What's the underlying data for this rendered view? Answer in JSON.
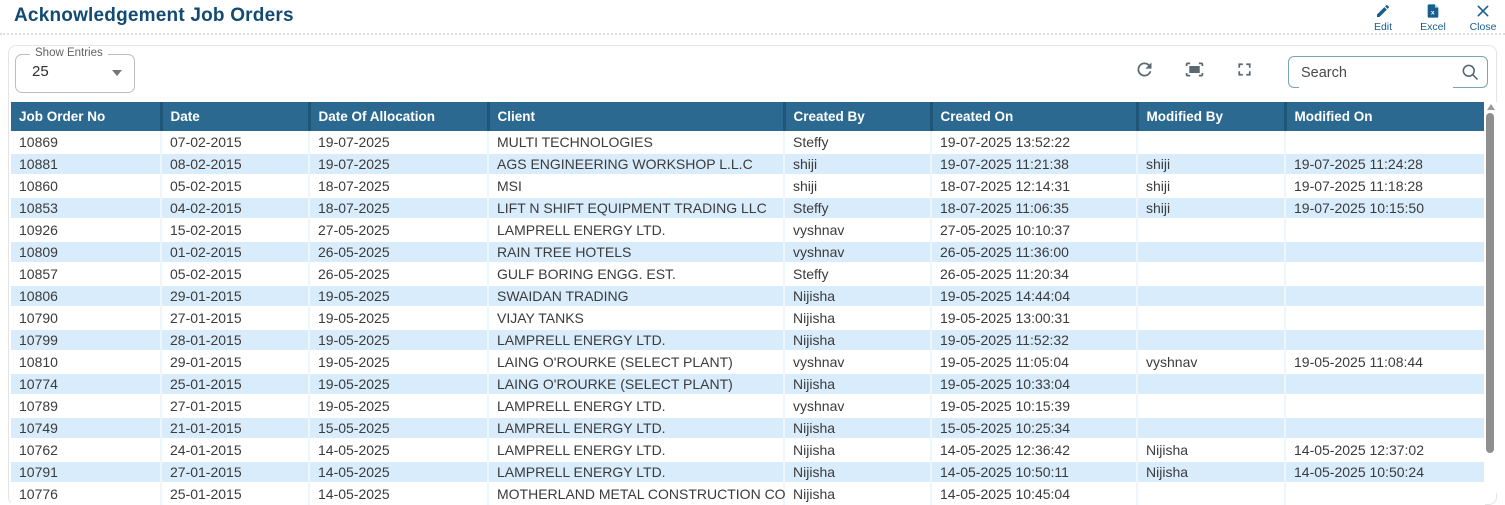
{
  "page": {
    "title": "Acknowledgement Job Orders"
  },
  "actions": {
    "edit_label": "Edit",
    "excel_label": "Excel",
    "close_label": "Close"
  },
  "controls": {
    "show_entries_label": "Show Entries",
    "show_entries_value": "25",
    "search_placeholder": "Search",
    "toolbar_icons": [
      "refresh-icon",
      "fit-screen-icon",
      "fullscreen-icon"
    ]
  },
  "colors": {
    "title_color": "#134a73",
    "action_color": "#175e8e",
    "header_bg": "#2b6991",
    "row_alt_bg": "#d8ecfc"
  },
  "table": {
    "columns": [
      "Job Order No",
      "Date",
      "Date Of Allocation",
      "Client",
      "Created By",
      "Created On",
      "Modified By",
      "Modified On"
    ],
    "rows": [
      [
        "10869",
        "07-02-2015",
        "19-07-2025",
        "MULTI TECHNOLOGIES",
        "Steffy",
        "19-07-2025 13:52:22",
        "",
        ""
      ],
      [
        "10881",
        "08-02-2015",
        "19-07-2025",
        "AGS ENGINEERING WORKSHOP L.L.C",
        "shiji",
        "19-07-2025 11:21:38",
        "shiji",
        "19-07-2025 11:24:28"
      ],
      [
        "10860",
        "05-02-2015",
        "18-07-2025",
        "MSI",
        "shiji",
        "18-07-2025 12:14:31",
        "shiji",
        "19-07-2025 11:18:28"
      ],
      [
        "10853",
        "04-02-2015",
        "18-07-2025",
        "LIFT N SHIFT EQUIPMENT TRADING LLC",
        "Steffy",
        "18-07-2025 11:06:35",
        "shiji",
        "19-07-2025 10:15:50"
      ],
      [
        "10926",
        "15-02-2015",
        "27-05-2025",
        "LAMPRELL ENERGY LTD.",
        "vyshnav",
        "27-05-2025 10:10:37",
        "",
        ""
      ],
      [
        "10809",
        "01-02-2015",
        "26-05-2025",
        "RAIN TREE HOTELS",
        "vyshnav",
        "26-05-2025 11:36:00",
        "",
        ""
      ],
      [
        "10857",
        "05-02-2015",
        "26-05-2025",
        "GULF BORING ENGG. EST.",
        "Steffy",
        "26-05-2025 11:20:34",
        "",
        ""
      ],
      [
        "10806",
        "29-01-2015",
        "19-05-2025",
        "SWAIDAN TRADING",
        "Nijisha",
        "19-05-2025 14:44:04",
        "",
        ""
      ],
      [
        "10790",
        "27-01-2015",
        "19-05-2025",
        "VIJAY TANKS",
        "Nijisha",
        "19-05-2025 13:00:31",
        "",
        ""
      ],
      [
        "10799",
        "28-01-2015",
        "19-05-2025",
        "LAMPRELL ENERGY LTD.",
        "Nijisha",
        "19-05-2025 11:52:32",
        "",
        ""
      ],
      [
        "10810",
        "29-01-2015",
        "19-05-2025",
        "LAING O'ROURKE (SELECT PLANT)",
        "vyshnav",
        "19-05-2025 11:05:04",
        "vyshnav",
        "19-05-2025 11:08:44"
      ],
      [
        "10774",
        "25-01-2015",
        "19-05-2025",
        "LAING O'ROURKE (SELECT PLANT)",
        "Nijisha",
        "19-05-2025 10:33:04",
        "",
        ""
      ],
      [
        "10789",
        "27-01-2015",
        "19-05-2025",
        "LAMPRELL ENERGY LTD.",
        "vyshnav",
        "19-05-2025 10:15:39",
        "",
        ""
      ],
      [
        "10749",
        "21-01-2015",
        "15-05-2025",
        "LAMPRELL ENERGY LTD.",
        "Nijisha",
        "15-05-2025 10:25:34",
        "",
        ""
      ],
      [
        "10762",
        "24-01-2015",
        "14-05-2025",
        "LAMPRELL ENERGY LTD.",
        "Nijisha",
        "14-05-2025 12:36:42",
        "Nijisha",
        "14-05-2025 12:37:02"
      ],
      [
        "10791",
        "27-01-2015",
        "14-05-2025",
        "LAMPRELL ENERGY LTD.",
        "Nijisha",
        "14-05-2025 10:50:11",
        "Nijisha",
        "14-05-2025 10:50:24"
      ],
      [
        "10776",
        "25-01-2015",
        "14-05-2025",
        "MOTHERLAND METAL CONSTRUCTION CO",
        "Nijisha",
        "14-05-2025 10:45:04",
        "",
        ""
      ]
    ]
  }
}
